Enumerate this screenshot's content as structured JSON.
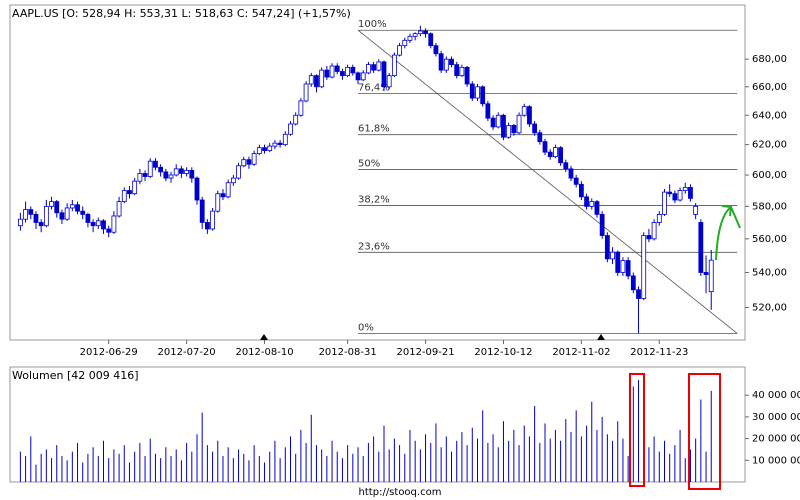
{
  "chart_data": [
    {
      "type": "candlestick",
      "title": "AAPL.US [O: 528,94  H: 553,31  L: 518,63  C: 547,24]  (+1,57%)",
      "color": "#0000cc",
      "log_scale": true,
      "xlim": [
        -2,
        139.5
      ],
      "ylim": [
        502,
        721
      ],
      "yticks": [
        {
          "value": 520,
          "label": "520,00"
        },
        {
          "value": 540,
          "label": "540,00"
        },
        {
          "value": 560,
          "label": "560,00"
        },
        {
          "value": 580,
          "label": "580,00"
        },
        {
          "value": 600,
          "label": "600,00"
        },
        {
          "value": 620,
          "label": "620,00"
        },
        {
          "value": 640,
          "label": "640,00"
        },
        {
          "value": 660,
          "label": "660,00"
        },
        {
          "value": 680,
          "label": "680,00"
        }
      ],
      "xticks": [
        {
          "value": 17,
          "label": "2012-06-29"
        },
        {
          "value": 32,
          "label": "2012-07-20"
        },
        {
          "value": 47,
          "label": "2012-08-10"
        },
        {
          "value": 63,
          "label": "2012-08-31"
        },
        {
          "value": 78,
          "label": "2012-09-21"
        },
        {
          "value": 93,
          "label": "2012-10-12"
        },
        {
          "value": 108,
          "label": "2012-11-02"
        },
        {
          "value": 123,
          "label": "2012-11-23"
        }
      ],
      "fibonacci": {
        "x": [
          65,
          138
        ],
        "levels": [
          {
            "value": 701.6,
            "label": "100%"
          },
          {
            "value": 655.3,
            "label": "76,4%"
          },
          {
            "value": 626.7,
            "label": "61,8%"
          },
          {
            "value": 603.6,
            "label": "50%"
          },
          {
            "value": 580.5,
            "label": "38,2%"
          },
          {
            "value": 551.9,
            "label": "23,6%"
          },
          {
            "value": 505.6,
            "label": "0%"
          }
        ]
      },
      "ohlc": [
        [
          568,
          576,
          565,
          572
        ],
        [
          572,
          583,
          570,
          578
        ],
        [
          578,
          580,
          572,
          575
        ],
        [
          575,
          577,
          566,
          570
        ],
        [
          570,
          572,
          564,
          568
        ],
        [
          568,
          584,
          567,
          580
        ],
        [
          580,
          586,
          578,
          583
        ],
        [
          583,
          584,
          573,
          576
        ],
        [
          576,
          578,
          569,
          572
        ],
        [
          572,
          582,
          571,
          579
        ],
        [
          579,
          584,
          577,
          581
        ],
        [
          581,
          583,
          575,
          577
        ],
        [
          577,
          580,
          572,
          575
        ],
        [
          575,
          576,
          567,
          570
        ],
        [
          570,
          572,
          564,
          568
        ],
        [
          568,
          573,
          566,
          571
        ],
        [
          571,
          572,
          563,
          566
        ],
        [
          566,
          568,
          561,
          564
        ],
        [
          564,
          577,
          563,
          574
        ],
        [
          574,
          586,
          573,
          583
        ],
        [
          583,
          592,
          582,
          590
        ],
        [
          590,
          593,
          585,
          588
        ],
        [
          588,
          598,
          587,
          596
        ],
        [
          596,
          604,
          594,
          601
        ],
        [
          601,
          603,
          596,
          599
        ],
        [
          599,
          611,
          598,
          609
        ],
        [
          609,
          611,
          603,
          605
        ],
        [
          605,
          607,
          599,
          602
        ],
        [
          602,
          604,
          596,
          598
        ],
        [
          598,
          602,
          595,
          600
        ],
        [
          600,
          607,
          599,
          604
        ],
        [
          604,
          606,
          598,
          601
        ],
        [
          601,
          605,
          599,
          603
        ],
        [
          603,
          605,
          595,
          598
        ],
        [
          598,
          599,
          581,
          584
        ],
        [
          584,
          586,
          566,
          570
        ],
        [
          570,
          572,
          563,
          566
        ],
        [
          566,
          579,
          565,
          577
        ],
        [
          577,
          590,
          576,
          588
        ],
        [
          588,
          591,
          584,
          586
        ],
        [
          586,
          597,
          585,
          595
        ],
        [
          595,
          600,
          593,
          598
        ],
        [
          598,
          608,
          597,
          606
        ],
        [
          606,
          612,
          605,
          610
        ],
        [
          610,
          612,
          604,
          607
        ],
        [
          607,
          616,
          606,
          614
        ],
        [
          614,
          620,
          613,
          618
        ],
        [
          618,
          620,
          614,
          616
        ],
        [
          616,
          621,
          615,
          619
        ],
        [
          619,
          623,
          617,
          621
        ],
        [
          621,
          623,
          618,
          620
        ],
        [
          620,
          629,
          619,
          627
        ],
        [
          627,
          636,
          626,
          634
        ],
        [
          634,
          642,
          633,
          640
        ],
        [
          640,
          652,
          639,
          650
        ],
        [
          650,
          664,
          649,
          662
        ],
        [
          662,
          670,
          660,
          668
        ],
        [
          668,
          669,
          656,
          660
        ],
        [
          660,
          674,
          659,
          672
        ],
        [
          672,
          675,
          665,
          667
        ],
        [
          667,
          677,
          666,
          675
        ],
        [
          675,
          677,
          669,
          671
        ],
        [
          671,
          673,
          665,
          668
        ],
        [
          668,
          676,
          667,
          674
        ],
        [
          674,
          676,
          668,
          670
        ],
        [
          670,
          671,
          662,
          665
        ],
        [
          665,
          672,
          664,
          670
        ],
        [
          670,
          678,
          669,
          676
        ],
        [
          676,
          678,
          670,
          672
        ],
        [
          672,
          680,
          671,
          678
        ],
        [
          678,
          679,
          657,
          660
        ],
        [
          660,
          670,
          658,
          668
        ],
        [
          668,
          685,
          667,
          683
        ],
        [
          683,
          692,
          682,
          690
        ],
        [
          690,
          696,
          688,
          694
        ],
        [
          694,
          699,
          692,
          697
        ],
        [
          697,
          700,
          694,
          699
        ],
        [
          699,
          705,
          697,
          701
        ],
        [
          701,
          703,
          696,
          699
        ],
        [
          699,
          700,
          688,
          690
        ],
        [
          690,
          692,
          682,
          684
        ],
        [
          684,
          686,
          670,
          672
        ],
        [
          672,
          682,
          670,
          680
        ],
        [
          680,
          682,
          674,
          676
        ],
        [
          676,
          678,
          666,
          668
        ],
        [
          668,
          676,
          667,
          674
        ],
        [
          674,
          675,
          660,
          662
        ],
        [
          662,
          664,
          650,
          652
        ],
        [
          652,
          662,
          650,
          660
        ],
        [
          660,
          661,
          646,
          648
        ],
        [
          648,
          650,
          636,
          638
        ],
        [
          638,
          640,
          630,
          632
        ],
        [
          632,
          642,
          631,
          640
        ],
        [
          640,
          641,
          623,
          625
        ],
        [
          625,
          635,
          624,
          633
        ],
        [
          633,
          634,
          626,
          628
        ],
        [
          628,
          642,
          627,
          640
        ],
        [
          640,
          648,
          639,
          646
        ],
        [
          646,
          647,
          632,
          634
        ],
        [
          634,
          636,
          626,
          628
        ],
        [
          628,
          630,
          620,
          622
        ],
        [
          622,
          624,
          613,
          615
        ],
        [
          615,
          617,
          610,
          612
        ],
        [
          612,
          620,
          611,
          618
        ],
        [
          618,
          619,
          606,
          608
        ],
        [
          608,
          610,
          602,
          604
        ],
        [
          604,
          606,
          596,
          598
        ],
        [
          598,
          600,
          592,
          594
        ],
        [
          594,
          596,
          584,
          586
        ],
        [
          586,
          588,
          578,
          580
        ],
        [
          580,
          585,
          578,
          583
        ],
        [
          583,
          584,
          573,
          575
        ],
        [
          575,
          577,
          560,
          562
        ],
        [
          562,
          564,
          546,
          548
        ],
        [
          548,
          555,
          545,
          552
        ],
        [
          552,
          553,
          538,
          540
        ],
        [
          540,
          549,
          538,
          547
        ],
        [
          547,
          549,
          536,
          538
        ],
        [
          538,
          540,
          528,
          530
        ],
        [
          530,
          532,
          505.75,
          525
        ],
        [
          525,
          564,
          524,
          562
        ],
        [
          562,
          566,
          558,
          560
        ],
        [
          560,
          572,
          559,
          570
        ],
        [
          570,
          577,
          568,
          575
        ],
        [
          575,
          591,
          574,
          589
        ],
        [
          589,
          594,
          586,
          588
        ],
        [
          588,
          590,
          582,
          584
        ],
        [
          584,
          592,
          583,
          590
        ],
        [
          590,
          595,
          588,
          592
        ],
        [
          592,
          594,
          583,
          585
        ],
        [
          575,
          582,
          572,
          580
        ],
        [
          570,
          572,
          538,
          540
        ],
        [
          540,
          550,
          528,
          538.78
        ],
        [
          528.94,
          553.31,
          518.63,
          547.24
        ]
      ]
    },
    {
      "type": "bar",
      "title": "Wolumen [42 009 416]",
      "color": "#0000cc",
      "xlim": [
        -2,
        139.5
      ],
      "ylim": [
        0,
        53000000
      ],
      "yticks": [
        {
          "value": 10000000,
          "label": "10 000 000"
        },
        {
          "value": 20000000,
          "label": "20 000 000"
        },
        {
          "value": 30000000,
          "label": "30 000 000"
        },
        {
          "value": 40000000,
          "label": "40 000 000"
        }
      ],
      "values": [
        14000000,
        12000000,
        21000000,
        8000000,
        13000000,
        15000000,
        11000000,
        17000000,
        12000000,
        10000000,
        14000000,
        18000000,
        9000000,
        13000000,
        16000000,
        12000000,
        19000000,
        11000000,
        15000000,
        13000000,
        17000000,
        9000000,
        14000000,
        18000000,
        12000000,
        20000000,
        13000000,
        11000000,
        16000000,
        12000000,
        15000000,
        10000000,
        18000000,
        14000000,
        22000000,
        32000000,
        17000000,
        14000000,
        19000000,
        12000000,
        16000000,
        11000000,
        15000000,
        13000000,
        10000000,
        17000000,
        12000000,
        9000000,
        14000000,
        19000000,
        11000000,
        16000000,
        21000000,
        13000000,
        24000000,
        18000000,
        31000000,
        17000000,
        15000000,
        12000000,
        19000000,
        14000000,
        11000000,
        17000000,
        13000000,
        16000000,
        12000000,
        18000000,
        21000000,
        14000000,
        26000000,
        15000000,
        20000000,
        17000000,
        13000000,
        24000000,
        19000000,
        15000000,
        22000000,
        18000000,
        27000000,
        16000000,
        21000000,
        14000000,
        19000000,
        23000000,
        17000000,
        25000000,
        20000000,
        33000000,
        18000000,
        22000000,
        16000000,
        28000000,
        19000000,
        24000000,
        17000000,
        26000000,
        21000000,
        35000000,
        18000000,
        27000000,
        20000000,
        24000000,
        19000000,
        29000000,
        23000000,
        33000000,
        21000000,
        26000000,
        37000000,
        24000000,
        30000000,
        22000000,
        19000000,
        28000000,
        20000000,
        12000000,
        44000000,
        47000000,
        23000000,
        16000000,
        21000000,
        14000000,
        19000000,
        13000000,
        17000000,
        24000000,
        11000000,
        15000000,
        20000000,
        38000000,
        14000000,
        42009416
      ]
    }
  ],
  "footer": "http://stooq.com"
}
